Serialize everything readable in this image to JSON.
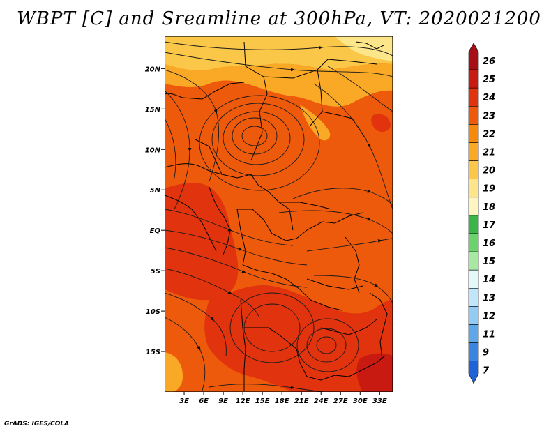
{
  "title": "WBPT [C] and Sreamline at 300hPa, VT: 2020021200",
  "credit": "GrADS: IGES/COLA",
  "map": {
    "lon_range": [
      0,
      35
    ],
    "lat_range": [
      -20,
      24
    ],
    "lon_ticks": [
      {
        "lon": 3,
        "label": "3E"
      },
      {
        "lon": 6,
        "label": "6E"
      },
      {
        "lon": 9,
        "label": "9E"
      },
      {
        "lon": 12,
        "label": "12E"
      },
      {
        "lon": 15,
        "label": "15E"
      },
      {
        "lon": 18,
        "label": "18E"
      },
      {
        "lon": 21,
        "label": "21E"
      },
      {
        "lon": 24,
        "label": "24E"
      },
      {
        "lon": 27,
        "label": "27E"
      },
      {
        "lon": 30,
        "label": "30E"
      },
      {
        "lon": 33,
        "label": "33E"
      }
    ],
    "lat_ticks": [
      {
        "lat": 20,
        "label": "20N"
      },
      {
        "lat": 15,
        "label": "15N"
      },
      {
        "lat": 10,
        "label": "10N"
      },
      {
        "lat": 5,
        "label": "5N"
      },
      {
        "lat": 0,
        "label": "EQ"
      },
      {
        "lat": -5,
        "label": "5S"
      },
      {
        "lat": -10,
        "label": "10S"
      },
      {
        "lat": -15,
        "label": "15S"
      }
    ]
  },
  "colorbar": {
    "labels": [
      "26",
      "25",
      "24",
      "23",
      "22",
      "21",
      "20",
      "19",
      "18",
      "17",
      "16",
      "15",
      "14",
      "13",
      "12",
      "11",
      "9",
      "7"
    ],
    "colors": [
      "#a50f15",
      "#c81a10",
      "#e0330e",
      "#ee5a0c",
      "#f68a0f",
      "#f9a925",
      "#fbc749",
      "#fde58a",
      "#fff5c0",
      "#39b54a",
      "#6cd36c",
      "#a7e8a3",
      "#e3f8f8",
      "#c1e6fb",
      "#94cbf3",
      "#5ea8ea",
      "#3b85e0",
      "#1f62d8"
    ]
  }
}
